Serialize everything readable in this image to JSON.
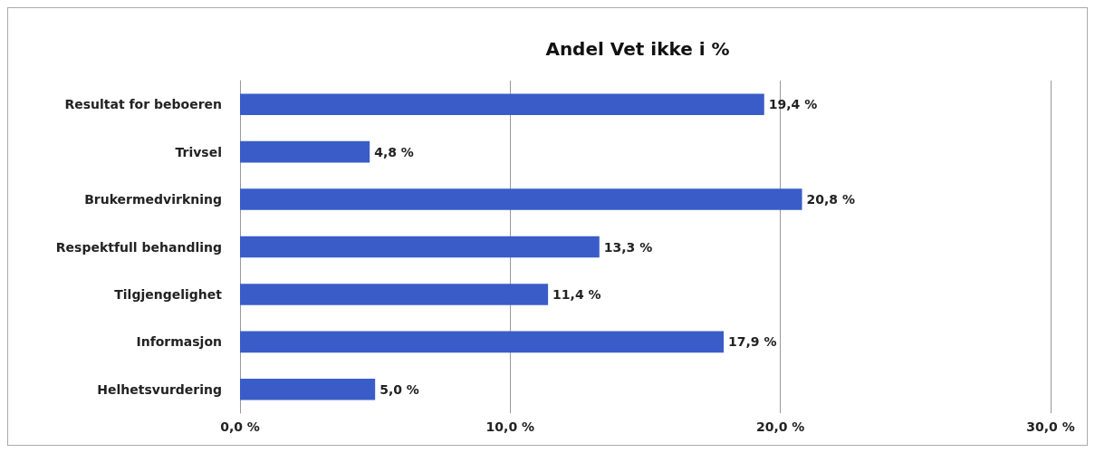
{
  "chart_data": {
    "type": "bar",
    "orientation": "horizontal",
    "title": "Andel Vet ikke i %",
    "categories": [
      "Resultat for beboeren",
      "Trivsel",
      "Brukermedvirkning",
      "Respektfull behandling",
      "Tilgjengelighet",
      "Informasjon",
      "Helhetsvurdering"
    ],
    "values": [
      19.4,
      4.8,
      20.8,
      13.3,
      11.4,
      17.9,
      5.0
    ],
    "value_labels": [
      "19,4 %",
      "4,8 %",
      "20,8 %",
      "13,3 %",
      "11,4 %",
      "17,9 %",
      "5,0 %"
    ],
    "color": "#3a5cc8",
    "xlim": [
      0,
      30
    ],
    "xticks": [
      {
        "value": 0,
        "label": "0,0 %"
      },
      {
        "value": 10,
        "label": "10,0 %"
      },
      {
        "value": 20,
        "label": "20,0 %"
      },
      {
        "value": 30,
        "label": "30,0 %"
      }
    ],
    "grid": "x"
  }
}
